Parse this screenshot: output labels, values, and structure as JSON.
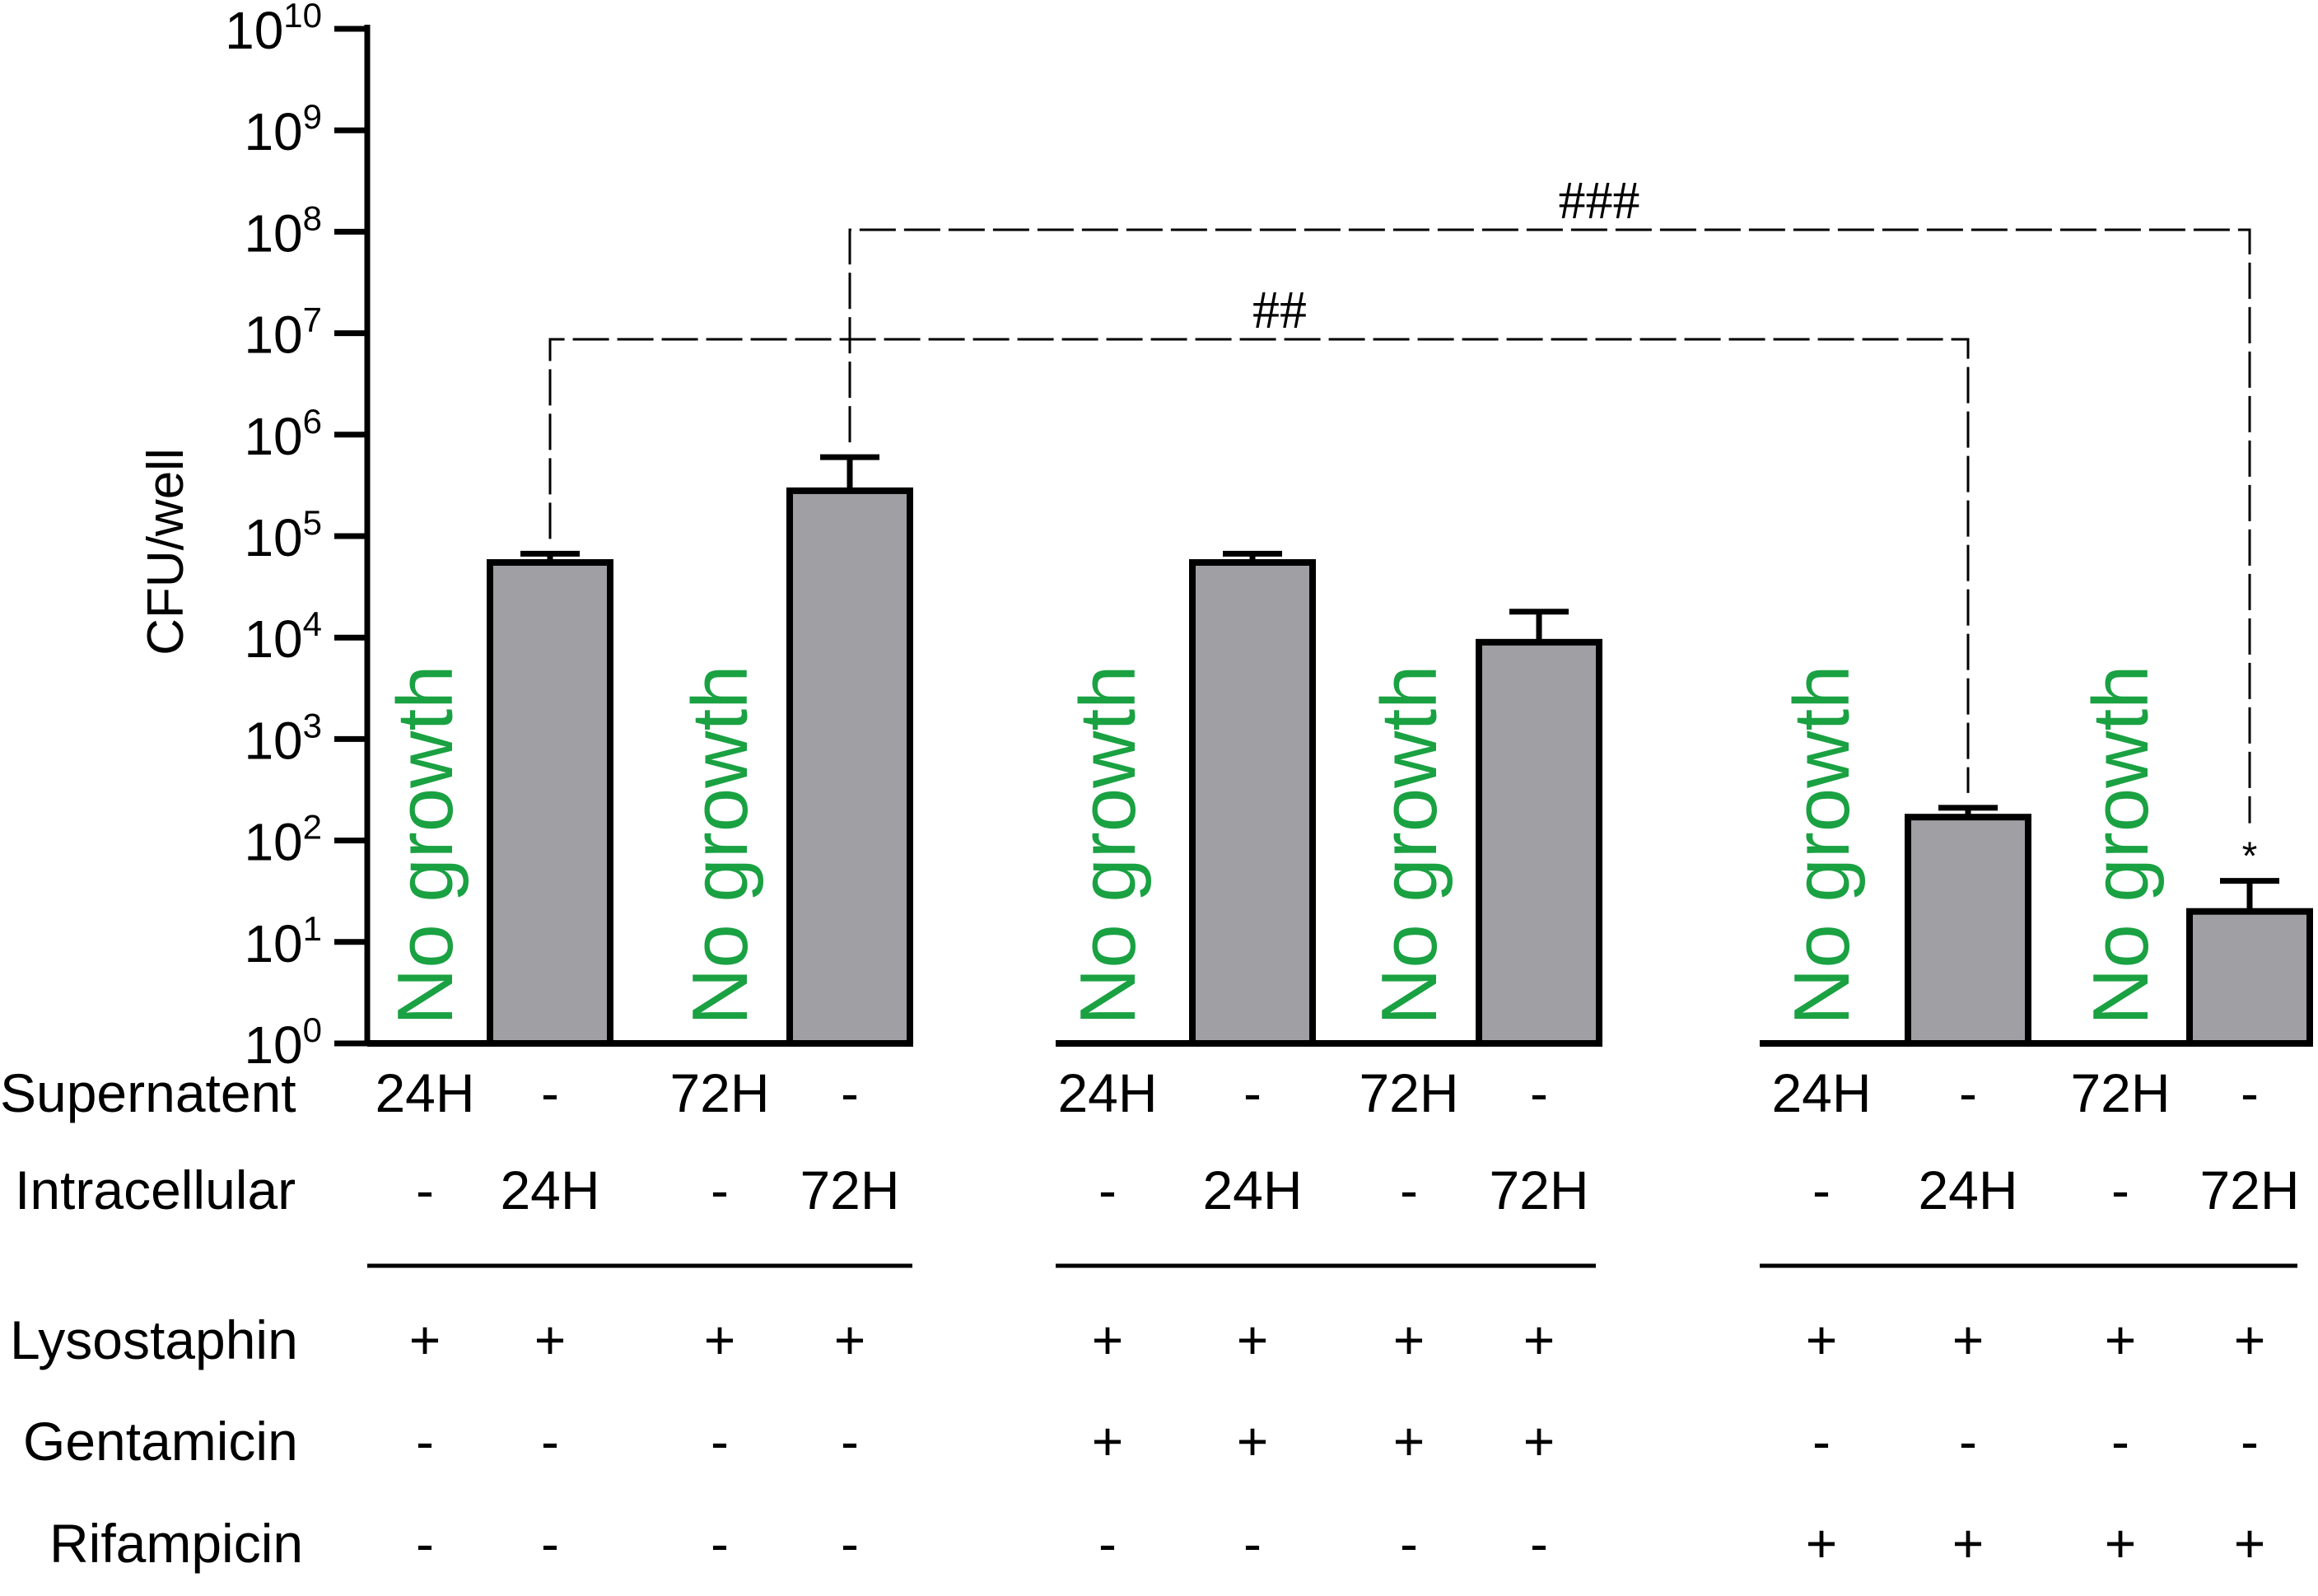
{
  "chart_data": {
    "type": "bar",
    "ylabel": "CFU/well",
    "yscale": "log",
    "ylim": [
      1,
      10000000000
    ],
    "ytick_base": "10",
    "ytick_exponents": [
      "0",
      "1",
      "2",
      "3",
      "4",
      "5",
      "6",
      "7",
      "8",
      "9",
      "10"
    ],
    "bar_color": "#a09fa4",
    "no_growth_color": "#1aa142",
    "no_growth_label": "No growth",
    "groups": [
      {
        "bars": [
          {
            "value": null,
            "error": null,
            "no_growth": true
          },
          {
            "value": 55000,
            "error": 12000,
            "no_growth": false
          },
          {
            "value": null,
            "error": null,
            "no_growth": true
          },
          {
            "value": 280000,
            "error": 320000,
            "no_growth": false
          }
        ],
        "supernatant": [
          "24H",
          "-",
          "72H",
          "-"
        ],
        "intracellular": [
          "-",
          "24H",
          "-",
          "72H"
        ],
        "lysostaphin": [
          "+",
          "+",
          "+",
          "+"
        ],
        "gentamicin": [
          "-",
          "-",
          "-",
          "-"
        ],
        "rifampicin": [
          "-",
          "-",
          "-",
          "-"
        ]
      },
      {
        "bars": [
          {
            "value": null,
            "error": null,
            "no_growth": true
          },
          {
            "value": 55000,
            "error": 12000,
            "no_growth": false
          },
          {
            "value": null,
            "error": null,
            "no_growth": true
          },
          {
            "value": 9000,
            "error": 9000,
            "no_growth": false
          }
        ],
        "supernatant": [
          "24H",
          "-",
          "72H",
          "-"
        ],
        "intracellular": [
          "-",
          "24H",
          "-",
          "72H"
        ],
        "lysostaphin": [
          "+",
          "+",
          "+",
          "+"
        ],
        "gentamicin": [
          "+",
          "+",
          "+",
          "+"
        ],
        "rifampicin": [
          "-",
          "-",
          "-",
          "-"
        ]
      },
      {
        "bars": [
          {
            "value": null,
            "error": null,
            "no_growth": true
          },
          {
            "value": 170,
            "error": 40,
            "no_growth": false,
            "annotation": ""
          },
          {
            "value": null,
            "error": null,
            "no_growth": true
          },
          {
            "value": 20,
            "error": 20,
            "no_growth": false,
            "annotation": "*"
          }
        ],
        "supernatant": [
          "24H",
          "-",
          "72H",
          "-"
        ],
        "intracellular": [
          "-",
          "24H",
          "-",
          "72H"
        ],
        "lysostaphin": [
          "+",
          "+",
          "+",
          "+"
        ],
        "gentamicin": [
          "-",
          "-",
          "-",
          "-"
        ],
        "rifampicin": [
          "+",
          "+",
          "+",
          "+"
        ]
      }
    ],
    "row_labels": {
      "supernatant": "Supernatent",
      "intracellular": "Intracellular",
      "lysostaphin": "Lysostaphin",
      "gentamicin": "Gentamicin",
      "rifampicin": "Rifampicin"
    },
    "significance": [
      {
        "label": "##",
        "from": {
          "group": 0,
          "bar": 1
        },
        "to": {
          "group": 2,
          "bar": 1
        }
      },
      {
        "label": "###",
        "from": {
          "group": 0,
          "bar": 3
        },
        "to": {
          "group": 2,
          "bar": 3
        }
      }
    ]
  }
}
